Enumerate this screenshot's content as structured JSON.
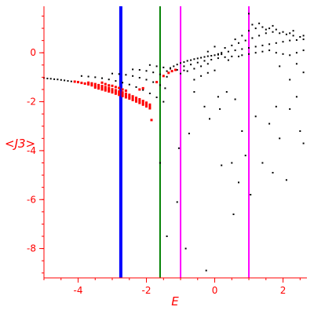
{
  "chart_data": {
    "type": "scatter",
    "title": "",
    "xlabel": "E",
    "ylabel": "<J3>",
    "xlim": [
      -5,
      2.7
    ],
    "ylim": [
      -9.2,
      1.9
    ],
    "x_ticks": [
      -4,
      -2,
      0,
      2
    ],
    "x_tick_labels": [
      "-4",
      "-2",
      "0",
      "2"
    ],
    "y_ticks": [
      0,
      -2,
      -4,
      -6,
      -8
    ],
    "y_tick_labels": [
      "0",
      "-2",
      "-4",
      "-6",
      "-8"
    ],
    "grid": false,
    "colors": {
      "axis": "#ff0000",
      "series_black": "#000000",
      "series_red": "#ff0000",
      "line_blue": "#0000ff",
      "line_green": "#008000",
      "line_magenta": "#ff00ff"
    },
    "vertical_lines": [
      {
        "x": -2.75,
        "color": "#0000ff",
        "width": 4
      },
      {
        "x": -1.6,
        "color": "#008000",
        "width": 2
      },
      {
        "x": -1.0,
        "color": "#ff00ff",
        "width": 2
      },
      {
        "x": 1.0,
        "color": "#ff00ff",
        "width": 2
      }
    ],
    "series": [
      {
        "color": "#000000",
        "points": [
          [
            -5.0,
            -1.03
          ],
          [
            -4.9,
            -1.05
          ],
          [
            -4.8,
            -1.06
          ],
          [
            -4.7,
            -1.08
          ],
          [
            -4.6,
            -1.09
          ],
          [
            -4.5,
            -1.11
          ],
          [
            -4.4,
            -1.13
          ],
          [
            -4.3,
            -1.15
          ],
          [
            -4.2,
            -1.17
          ],
          [
            -4.1,
            -1.19
          ],
          [
            -4.0,
            -1.21
          ],
          [
            -3.9,
            -1.23
          ],
          [
            -3.8,
            -1.26
          ],
          [
            -3.7,
            -1.28
          ],
          [
            -3.9,
            -0.95
          ],
          [
            -3.7,
            -0.97
          ],
          [
            -3.5,
            -1.0
          ],
          [
            -3.3,
            -1.04
          ],
          [
            -3.1,
            -1.09
          ],
          [
            -2.9,
            -1.15
          ],
          [
            -2.7,
            -1.22
          ],
          [
            -2.5,
            -1.3
          ],
          [
            -2.3,
            -1.4
          ],
          [
            -2.1,
            -1.52
          ],
          [
            -1.9,
            -1.66
          ],
          [
            -1.7,
            -1.82
          ],
          [
            -1.5,
            -2.0
          ],
          [
            -3.0,
            -0.85
          ],
          [
            -2.8,
            -0.87
          ],
          [
            -2.6,
            -0.9
          ],
          [
            -2.4,
            -0.95
          ],
          [
            -2.2,
            -1.02
          ],
          [
            -2.0,
            -1.1
          ],
          [
            -1.8,
            -1.2
          ],
          [
            -1.6,
            -1.32
          ],
          [
            -1.45,
            -1.45
          ],
          [
            -2.4,
            -0.68
          ],
          [
            -2.2,
            -0.7
          ],
          [
            -2.0,
            -0.74
          ],
          [
            -1.8,
            -0.8
          ],
          [
            -1.6,
            -0.88
          ],
          [
            -1.4,
            -0.98
          ],
          [
            -1.9,
            -0.5
          ],
          [
            -1.7,
            -0.55
          ],
          [
            -1.5,
            -0.6
          ],
          [
            -1.3,
            -0.65
          ],
          [
            -1.1,
            -0.7
          ],
          [
            -0.9,
            -0.72
          ],
          [
            -1.4,
            -0.75
          ],
          [
            -1.3,
            -0.62
          ],
          [
            -1.2,
            -0.55
          ],
          [
            -1.1,
            -0.48
          ],
          [
            -1.0,
            -0.42
          ],
          [
            -0.9,
            -0.38
          ],
          [
            -0.8,
            -0.33
          ],
          [
            -0.7,
            -0.3
          ],
          [
            -0.6,
            -0.26
          ],
          [
            -0.5,
            -0.23
          ],
          [
            -0.4,
            -0.2
          ],
          [
            -0.3,
            -0.17
          ],
          [
            -0.2,
            -0.14
          ],
          [
            -0.1,
            -0.12
          ],
          [
            0.0,
            -0.1
          ],
          [
            0.1,
            -0.08
          ],
          [
            0.2,
            -0.06
          ],
          [
            -0.9,
            -0.55
          ],
          [
            -0.7,
            -0.48
          ],
          [
            -0.5,
            -0.4
          ],
          [
            -0.3,
            -0.33
          ],
          [
            -0.1,
            -0.28
          ],
          [
            0.1,
            -0.22
          ],
          [
            0.3,
            -0.18
          ],
          [
            0.5,
            -0.15
          ],
          [
            -1.0,
            -0.85
          ],
          [
            -0.8,
            -0.75
          ],
          [
            -0.6,
            -0.65
          ],
          [
            -0.4,
            -0.55
          ],
          [
            -0.2,
            -0.45
          ],
          [
            -0.6,
            -1.1
          ],
          [
            -0.4,
            -0.95
          ],
          [
            -0.2,
            -0.82
          ],
          [
            0.0,
            -0.72
          ],
          [
            0.2,
            0.0
          ],
          [
            0.4,
            0.05
          ],
          [
            0.6,
            0.1
          ],
          [
            0.8,
            0.15
          ],
          [
            1.0,
            0.2
          ],
          [
            1.2,
            0.25
          ],
          [
            1.4,
            0.3
          ],
          [
            1.6,
            0.35
          ],
          [
            1.8,
            0.4
          ],
          [
            2.0,
            0.45
          ],
          [
            2.2,
            0.5
          ],
          [
            2.4,
            0.52
          ],
          [
            2.6,
            0.55
          ],
          [
            0.3,
            0.2
          ],
          [
            0.5,
            0.3
          ],
          [
            0.7,
            0.4
          ],
          [
            0.9,
            0.5
          ],
          [
            1.1,
            0.6
          ],
          [
            1.3,
            0.7
          ],
          [
            1.5,
            0.8
          ],
          [
            1.7,
            0.85
          ],
          [
            1.9,
            0.8
          ],
          [
            2.1,
            0.75
          ],
          [
            2.3,
            0.7
          ],
          [
            2.5,
            0.65
          ],
          [
            0.6,
            0.55
          ],
          [
            0.8,
            0.7
          ],
          [
            1.0,
            0.9
          ],
          [
            1.2,
            1.0
          ],
          [
            1.4,
            1.05
          ],
          [
            1.6,
            1.0
          ],
          [
            1.8,
            0.95
          ],
          [
            2.0,
            0.85
          ],
          [
            2.2,
            0.8
          ],
          [
            0.8,
            -0.1
          ],
          [
            1.0,
            -0.05
          ],
          [
            1.2,
            0.0
          ],
          [
            1.4,
            0.05
          ],
          [
            1.6,
            0.1
          ],
          [
            1.8,
            0.0
          ],
          [
            2.0,
            -0.05
          ],
          [
            2.2,
            -0.1
          ],
          [
            2.4,
            0.0
          ],
          [
            2.6,
            0.1
          ],
          [
            1.0,
            1.6
          ],
          [
            1.1,
            1.15
          ],
          [
            1.3,
            1.2
          ],
          [
            1.5,
            0.95
          ],
          [
            1.7,
            1.1
          ],
          [
            2.3,
            0.9
          ],
          [
            2.6,
            0.7
          ],
          [
            0.0,
            0.25
          ],
          [
            -0.2,
            0.05
          ],
          [
            0.1,
            -0.05
          ],
          [
            0.4,
            -0.3
          ],
          [
            0.7,
            -0.15
          ],
          [
            2.4,
            -0.45
          ],
          [
            2.6,
            -0.8
          ],
          [
            2.2,
            -1.1
          ],
          [
            1.9,
            -0.55
          ],
          [
            -1.6,
            -4.5
          ],
          [
            -1.4,
            -7.5
          ],
          [
            -1.1,
            -6.1
          ],
          [
            -1.05,
            -3.9
          ],
          [
            -0.85,
            -8.0
          ],
          [
            -0.75,
            -3.3
          ],
          [
            -0.6,
            -1.6
          ],
          [
            -0.3,
            -2.2
          ],
          [
            -0.25,
            -8.9
          ],
          [
            -0.15,
            -2.7
          ],
          [
            0.1,
            -1.8
          ],
          [
            0.15,
            -2.3
          ],
          [
            0.2,
            -4.6
          ],
          [
            0.35,
            -1.6
          ],
          [
            0.5,
            -4.5
          ],
          [
            0.55,
            -6.6
          ],
          [
            0.6,
            -1.9
          ],
          [
            0.7,
            -5.3
          ],
          [
            0.8,
            -3.2
          ],
          [
            0.9,
            -4.2
          ],
          [
            1.05,
            -5.8
          ],
          [
            1.2,
            -2.6
          ],
          [
            1.4,
            -4.5
          ],
          [
            1.6,
            -2.9
          ],
          [
            1.7,
            -4.9
          ],
          [
            1.8,
            -2.2
          ],
          [
            1.9,
            -3.5
          ],
          [
            2.1,
            -5.2
          ],
          [
            2.2,
            -2.3
          ],
          [
            2.4,
            -1.8
          ],
          [
            2.5,
            -3.2
          ],
          [
            2.6,
            -3.7
          ]
        ]
      },
      {
        "color": "#ff0000",
        "points": [
          [
            -4.1,
            -1.18
          ],
          [
            -4.0,
            -1.2
          ],
          [
            -3.9,
            -1.23
          ],
          [
            -3.8,
            -1.26
          ],
          [
            -3.7,
            -1.29
          ],
          [
            -3.6,
            -1.33
          ],
          [
            -3.5,
            -1.36
          ],
          [
            -3.4,
            -1.4
          ],
          [
            -3.3,
            -1.44
          ],
          [
            -3.2,
            -1.48
          ],
          [
            -3.1,
            -1.52
          ],
          [
            -3.0,
            -1.56
          ],
          [
            -2.9,
            -1.6
          ],
          [
            -2.8,
            -1.65
          ],
          [
            -2.7,
            -1.7
          ],
          [
            -2.6,
            -1.75
          ],
          [
            -2.5,
            -1.8
          ],
          [
            -2.4,
            -1.86
          ],
          [
            -2.3,
            -1.92
          ],
          [
            -2.2,
            -1.98
          ],
          [
            -2.1,
            -2.05
          ],
          [
            -2.0,
            -2.12
          ],
          [
            -1.9,
            -2.2
          ],
          [
            -3.7,
            -1.22
          ],
          [
            -3.6,
            -1.25
          ],
          [
            -3.5,
            -1.28
          ],
          [
            -3.4,
            -1.32
          ],
          [
            -3.3,
            -1.36
          ],
          [
            -3.2,
            -1.4
          ],
          [
            -3.1,
            -1.44
          ],
          [
            -3.0,
            -1.49
          ],
          [
            -2.9,
            -1.53
          ],
          [
            -2.8,
            -1.58
          ],
          [
            -2.7,
            -1.62
          ],
          [
            -2.6,
            -1.67
          ],
          [
            -2.5,
            -1.72
          ],
          [
            -2.4,
            -1.78
          ],
          [
            -2.3,
            -1.84
          ],
          [
            -2.2,
            -1.9
          ],
          [
            -2.1,
            -1.97
          ],
          [
            -2.0,
            -2.04
          ],
          [
            -1.9,
            -2.12
          ],
          [
            -3.5,
            -1.42
          ],
          [
            -3.4,
            -1.46
          ],
          [
            -3.3,
            -1.5
          ],
          [
            -3.2,
            -1.54
          ],
          [
            -3.1,
            -1.58
          ],
          [
            -3.0,
            -1.62
          ],
          [
            -2.9,
            -1.67
          ],
          [
            -2.8,
            -1.72
          ],
          [
            -2.7,
            -1.77
          ],
          [
            -2.6,
            -1.82
          ],
          [
            -2.5,
            -1.87
          ],
          [
            -2.4,
            -1.93
          ],
          [
            -2.3,
            -1.99
          ],
          [
            -2.2,
            -2.05
          ],
          [
            -2.1,
            -2.12
          ],
          [
            -2.0,
            -2.19
          ],
          [
            -1.9,
            -2.27
          ],
          [
            -3.0,
            -1.35
          ],
          [
            -2.9,
            -1.4
          ],
          [
            -2.8,
            -1.44
          ],
          [
            -2.7,
            -1.5
          ],
          [
            -2.6,
            -1.55
          ],
          [
            -3.3,
            -1.22
          ],
          [
            -3.2,
            -1.28
          ],
          [
            -3.1,
            -1.33
          ],
          [
            -2.2,
            -1.5
          ],
          [
            -2.1,
            -1.45
          ],
          [
            -1.85,
            -2.75
          ],
          [
            -1.7,
            -1.2
          ],
          [
            -1.5,
            -0.95
          ],
          [
            -1.35,
            -0.82
          ],
          [
            -1.25,
            -0.75
          ],
          [
            -1.15,
            -0.7
          ]
        ]
      }
    ]
  }
}
